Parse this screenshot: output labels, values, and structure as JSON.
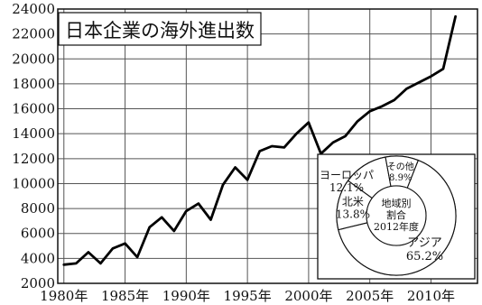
{
  "chart_data": [
    {
      "type": "line",
      "title": "日本企業の海外進出数",
      "xlabel": "",
      "ylabel": "",
      "x_tick_labels": [
        "1980年",
        "1985年",
        "1990年",
        "1995年",
        "2000年",
        "2005年",
        "2010年"
      ],
      "x_tick_values": [
        1980,
        1985,
        1990,
        1995,
        2000,
        2005,
        2010
      ],
      "y_tick_labels": [
        "2000",
        "4000",
        "6000",
        "8000",
        "10000",
        "12000",
        "14000",
        "16000",
        "18000",
        "20000",
        "22000",
        "24000"
      ],
      "xlim": [
        1979.5,
        2013.8
      ],
      "ylim": [
        2000,
        24000
      ],
      "grid": true,
      "x": [
        1980,
        1981,
        1982,
        1983,
        1984,
        1985,
        1986,
        1987,
        1988,
        1989,
        1990,
        1991,
        1992,
        1993,
        1994,
        1995,
        1996,
        1997,
        1998,
        1999,
        2000,
        2001,
        2002,
        2003,
        2004,
        2005,
        2006,
        2007,
        2008,
        2009,
        2010,
        2011,
        2012
      ],
      "series": [
        {
          "values": [
            3500,
            3600,
            4500,
            3600,
            4800,
            5200,
            4100,
            6500,
            7300,
            6200,
            7800,
            8400,
            7100,
            9900,
            11300,
            10300,
            12600,
            13000,
            12900,
            14000,
            14900,
            12400,
            13300,
            13800,
            15000,
            15800,
            16200,
            16700,
            17600,
            18100,
            18600,
            19200,
            23400
          ]
        }
      ],
      "color": "#000000"
    },
    {
      "type": "pie",
      "subtype": "donut",
      "center_label": [
        "地域別",
        "割合",
        "2012年度"
      ],
      "slices": [
        {
          "label": "アジア",
          "value": 65.2,
          "value_label": "65.2%"
        },
        {
          "label": "北米",
          "value": 13.8,
          "value_label": "13.8%"
        },
        {
          "label": "ヨーロッパ",
          "value": 12.1,
          "value_label": "12.1%"
        },
        {
          "label": "その他",
          "value": 8.9,
          "value_label": "8.9%"
        }
      ]
    }
  ]
}
